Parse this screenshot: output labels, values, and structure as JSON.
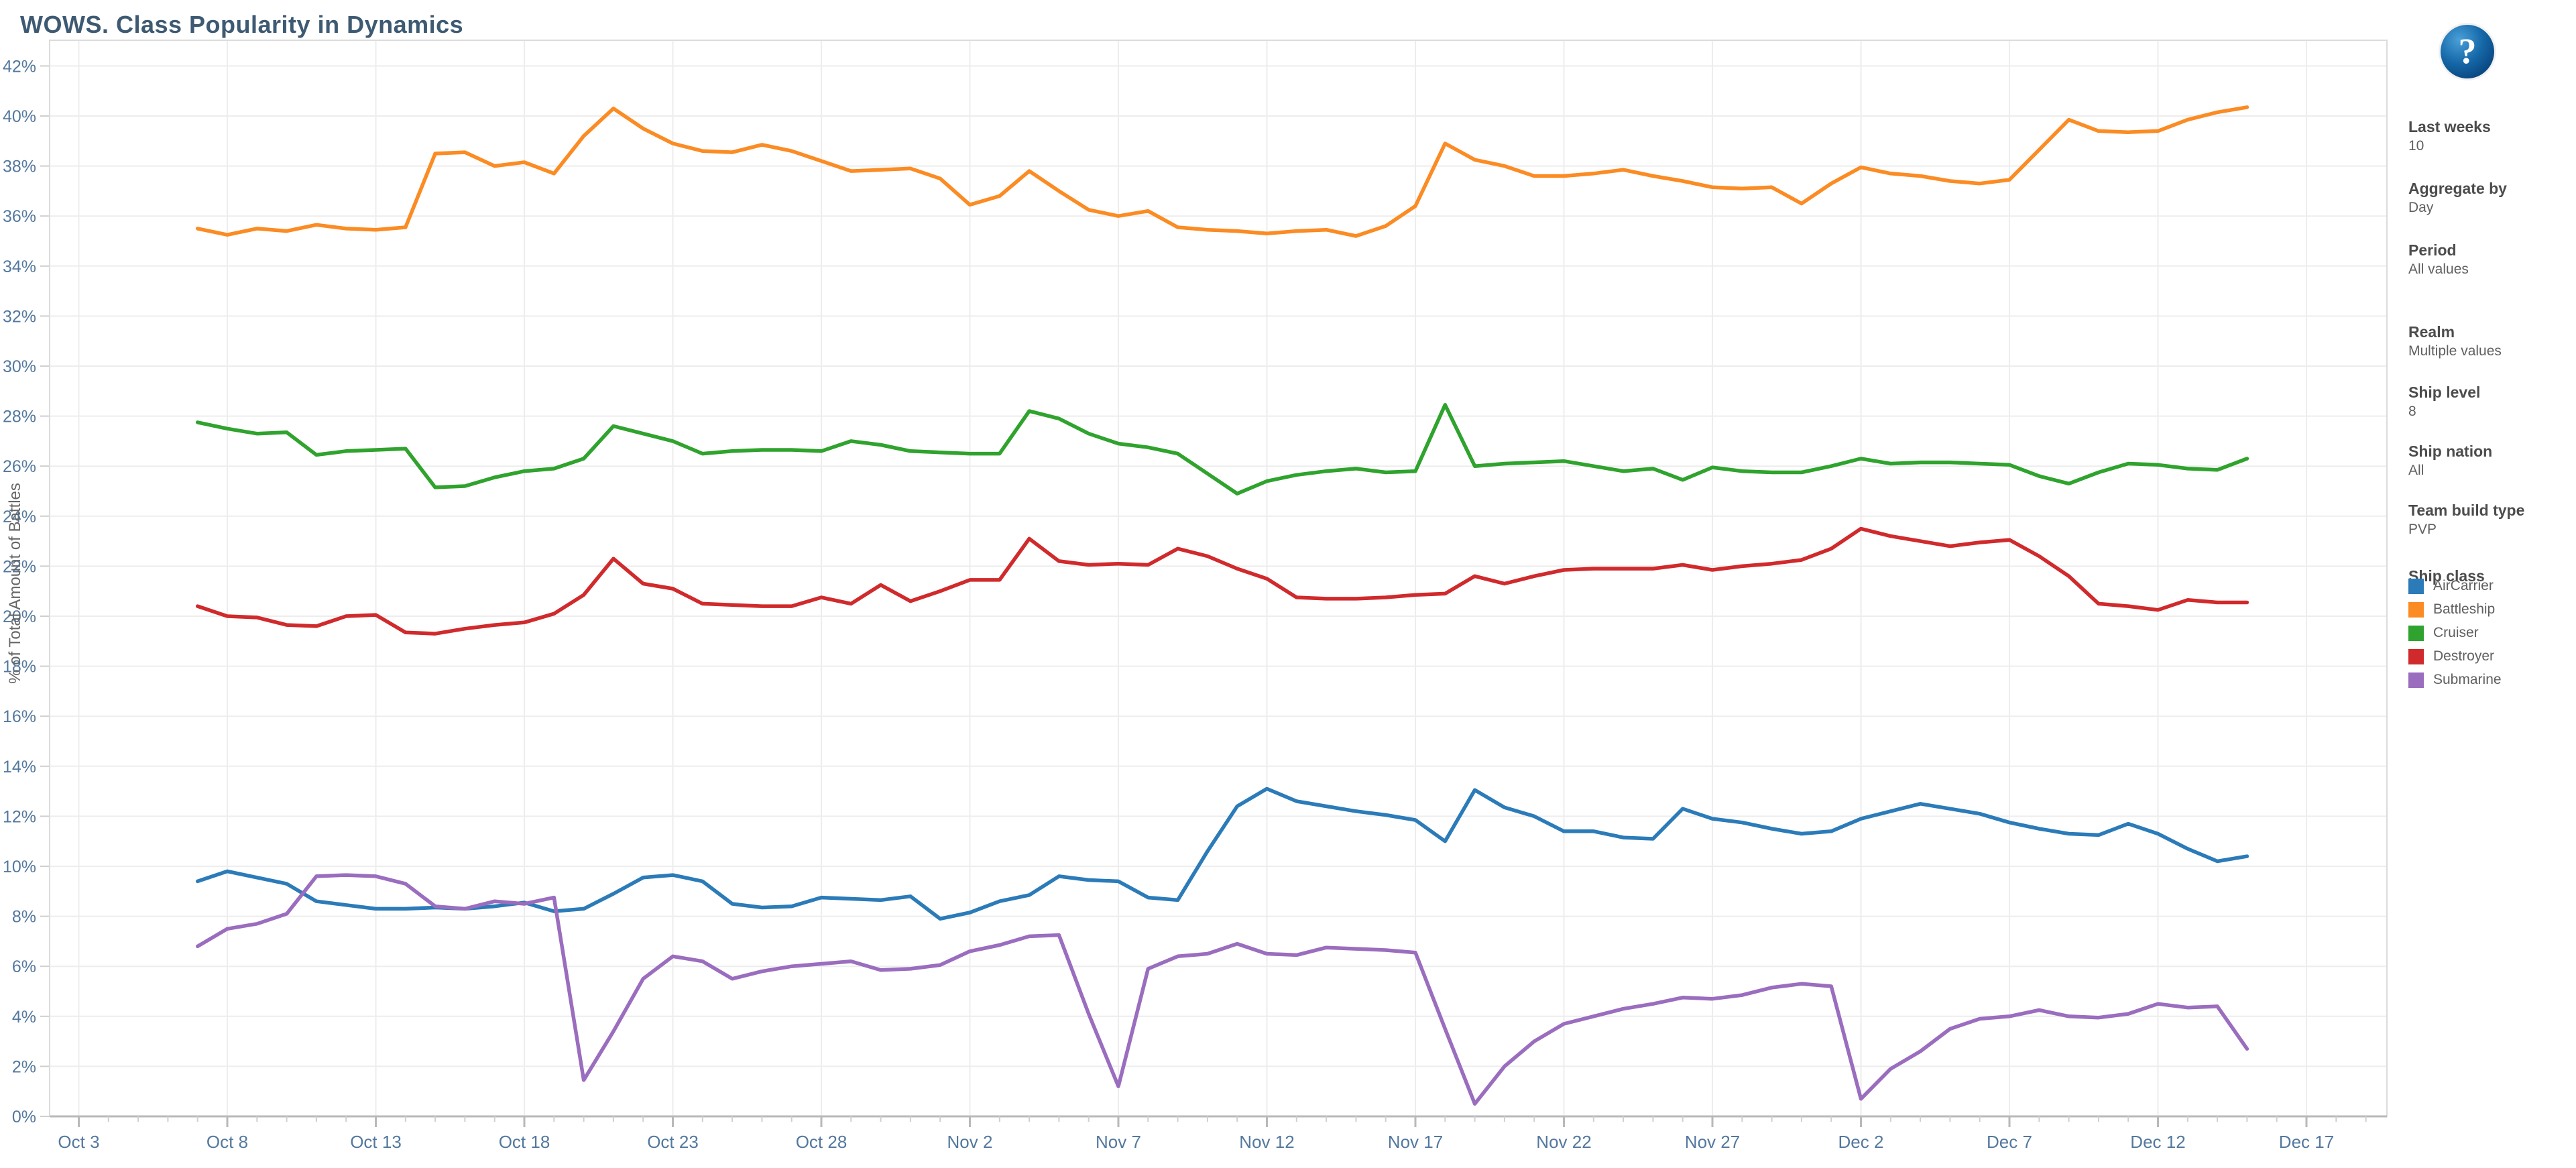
{
  "title": "WOWS. Class Popularity in Dynamics",
  "help_icon": {
    "glyph": "?"
  },
  "panel": {
    "filters": [
      {
        "label": "Last weeks",
        "value": "10"
      },
      {
        "label": "Aggregate by",
        "value": "Day"
      },
      {
        "label": "Period",
        "value": "All values"
      },
      {
        "label": "Realm",
        "value": "Multiple values"
      },
      {
        "label": "Ship level",
        "value": "8"
      },
      {
        "label": "Ship nation",
        "value": "All"
      },
      {
        "label": "Team build type",
        "value": "PVP"
      }
    ],
    "legend_title": "Ship class",
    "legend": [
      {
        "label": "AirCarrier",
        "color": "#2b7bb9"
      },
      {
        "label": "Battleship",
        "color": "#fb8b23"
      },
      {
        "label": "Cruiser",
        "color": "#2fa32d"
      },
      {
        "label": "Destroyer",
        "color": "#d02a2c"
      },
      {
        "label": "Submarine",
        "color": "#9a6dbf"
      }
    ]
  },
  "chart_data": {
    "type": "line",
    "title": "WOWS. Class Popularity in Dynamics",
    "xlabel": "",
    "ylabel": "% of Total Amount of Battles",
    "ylim": [
      0,
      42
    ],
    "y_tick_step": 2,
    "y_tick_suffix": "%",
    "grid": true,
    "legend_position": "right",
    "x_tick_labels": [
      "Oct 3",
      "Oct 8",
      "Oct 13",
      "Oct 18",
      "Oct 23",
      "Oct 28",
      "Nov 2",
      "Nov 7",
      "Nov 12",
      "Nov 17",
      "Nov 22",
      "Nov 27",
      "Dec 2",
      "Dec 7",
      "Dec 12",
      "Dec 17"
    ],
    "x": [
      "Oct 7",
      "Oct 8",
      "Oct 9",
      "Oct 10",
      "Oct 11",
      "Oct 12",
      "Oct 13",
      "Oct 14",
      "Oct 15",
      "Oct 16",
      "Oct 17",
      "Oct 18",
      "Oct 19",
      "Oct 20",
      "Oct 21",
      "Oct 22",
      "Oct 23",
      "Oct 24",
      "Oct 25",
      "Oct 26",
      "Oct 27",
      "Oct 28",
      "Oct 29",
      "Oct 30",
      "Oct 31",
      "Nov 1",
      "Nov 2",
      "Nov 3",
      "Nov 4",
      "Nov 5",
      "Nov 6",
      "Nov 7",
      "Nov 8",
      "Nov 9",
      "Nov 10",
      "Nov 11",
      "Nov 12",
      "Nov 13",
      "Nov 14",
      "Nov 15",
      "Nov 16",
      "Nov 17",
      "Nov 18",
      "Nov 19",
      "Nov 20",
      "Nov 21",
      "Nov 22",
      "Nov 23",
      "Nov 24",
      "Nov 25",
      "Nov 26",
      "Nov 27",
      "Nov 28",
      "Nov 29",
      "Nov 30",
      "Dec 1",
      "Dec 2",
      "Dec 3",
      "Dec 4",
      "Dec 5",
      "Dec 6",
      "Dec 7",
      "Dec 8",
      "Dec 9",
      "Dec 10",
      "Dec 11",
      "Dec 12",
      "Dec 13",
      "Dec 14",
      "Dec 15"
    ],
    "series": [
      {
        "name": "AirCarrier",
        "color": "#2b7bb9",
        "values": [
          9.4,
          9.8,
          9.55,
          9.3,
          8.6,
          8.45,
          8.3,
          8.3,
          8.35,
          8.3,
          8.4,
          8.55,
          8.2,
          8.3,
          8.9,
          9.55,
          9.65,
          9.4,
          8.5,
          8.35,
          8.4,
          8.75,
          8.7,
          8.65,
          8.8,
          7.9,
          8.15,
          8.6,
          8.85,
          9.6,
          9.45,
          9.4,
          8.75,
          8.65,
          10.6,
          12.4,
          13.1,
          12.6,
          12.4,
          12.2,
          12.05,
          11.85,
          11.0,
          13.05,
          12.35,
          12.0,
          11.4,
          11.4,
          11.15,
          11.1,
          12.3,
          11.9,
          11.75,
          11.5,
          11.3,
          11.4,
          11.9,
          12.2,
          12.5,
          12.3,
          12.1,
          11.75,
          11.5,
          11.3,
          11.25,
          11.7,
          11.3,
          10.7,
          10.2,
          10.4
        ]
      },
      {
        "name": "Battleship",
        "color": "#fb8b23",
        "values": [
          35.5,
          35.25,
          35.5,
          35.4,
          35.65,
          35.5,
          35.45,
          35.55,
          38.5,
          38.55,
          38.0,
          38.15,
          37.7,
          39.2,
          40.3,
          39.5,
          38.9,
          38.6,
          38.55,
          38.85,
          38.6,
          38.2,
          37.8,
          37.85,
          37.9,
          37.5,
          36.45,
          36.8,
          37.8,
          37.0,
          36.25,
          36.0,
          36.2,
          35.55,
          35.45,
          35.4,
          35.3,
          35.4,
          35.45,
          35.2,
          35.6,
          36.4,
          38.9,
          38.25,
          38.0,
          37.6,
          37.6,
          37.7,
          37.85,
          37.6,
          37.4,
          37.15,
          37.1,
          37.15,
          36.5,
          37.3,
          37.95,
          37.7,
          37.6,
          37.4,
          37.3,
          37.45,
          38.65,
          39.85,
          39.4,
          39.35,
          39.4,
          39.85,
          40.15,
          40.35
        ]
      },
      {
        "name": "Cruiser",
        "color": "#2fa32d",
        "values": [
          27.75,
          27.5,
          27.3,
          27.35,
          26.45,
          26.6,
          26.65,
          26.7,
          25.15,
          25.2,
          25.55,
          25.8,
          25.9,
          26.3,
          27.6,
          27.3,
          27.0,
          26.5,
          26.6,
          26.65,
          26.65,
          26.6,
          27.0,
          26.85,
          26.6,
          26.55,
          26.5,
          26.5,
          28.2,
          27.9,
          27.3,
          26.9,
          26.75,
          26.5,
          25.7,
          24.9,
          25.4,
          25.65,
          25.8,
          25.9,
          25.75,
          25.8,
          28.45,
          26.0,
          26.1,
          26.15,
          26.2,
          26.0,
          25.8,
          25.9,
          25.45,
          25.95,
          25.8,
          25.75,
          25.75,
          26.0,
          26.3,
          26.1,
          26.15,
          26.15,
          26.1,
          26.05,
          25.6,
          25.3,
          25.75,
          26.1,
          26.05,
          25.9,
          25.85,
          26.3
        ]
      },
      {
        "name": "Destroyer",
        "color": "#d02a2c",
        "values": [
          20.4,
          20.0,
          19.95,
          19.65,
          19.6,
          20.0,
          20.05,
          19.35,
          19.3,
          19.5,
          19.65,
          19.75,
          20.1,
          20.85,
          22.3,
          21.3,
          21.1,
          20.5,
          20.45,
          20.4,
          20.4,
          20.75,
          20.5,
          21.25,
          20.6,
          21.0,
          21.45,
          21.45,
          23.1,
          22.2,
          22.05,
          22.1,
          22.05,
          22.7,
          22.4,
          21.9,
          21.5,
          20.75,
          20.7,
          20.7,
          20.75,
          20.85,
          20.9,
          21.6,
          21.3,
          21.6,
          21.85,
          21.9,
          21.9,
          21.9,
          22.05,
          21.85,
          22.0,
          22.1,
          22.25,
          22.7,
          23.5,
          23.2,
          23.0,
          22.8,
          22.95,
          23.05,
          22.4,
          21.6,
          20.5,
          20.4,
          20.25,
          20.65,
          20.55,
          20.55
        ]
      },
      {
        "name": "Submarine",
        "color": "#9a6dbf",
        "values": [
          6.8,
          7.5,
          7.7,
          8.1,
          9.6,
          9.65,
          9.6,
          9.3,
          8.4,
          8.3,
          8.6,
          8.5,
          8.75,
          1.45,
          3.4,
          5.5,
          6.4,
          6.2,
          5.5,
          5.8,
          6.0,
          6.1,
          6.2,
          5.85,
          5.9,
          6.05,
          6.6,
          6.85,
          7.2,
          7.25,
          4.1,
          1.2,
          5.9,
          6.4,
          6.5,
          6.9,
          6.5,
          6.45,
          6.75,
          6.7,
          6.65,
          6.55,
          3.5,
          0.5,
          2.0,
          3.0,
          3.7,
          4.0,
          4.3,
          4.5,
          4.75,
          4.7,
          4.85,
          5.15,
          5.3,
          5.2,
          0.7,
          1.9,
          2.6,
          3.5,
          3.9,
          4.0,
          4.25,
          4.0,
          3.95,
          4.1,
          4.5,
          4.35,
          4.4,
          2.7
        ]
      }
    ]
  },
  "colors": {
    "title": "#3e5a73",
    "axis_labels": "#53789e",
    "gridline": "#ededed",
    "axis_line": "#b9b9b9",
    "tick": "#cfcfcf"
  }
}
